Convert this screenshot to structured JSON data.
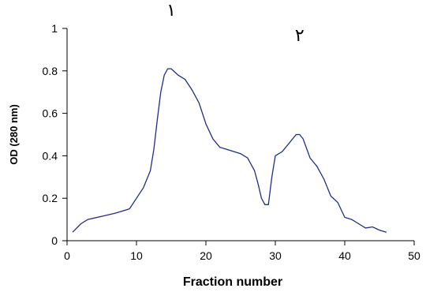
{
  "chart_data": {
    "type": "line",
    "title": "",
    "xlabel": "Fraction number",
    "ylabel": "OD (280 nm)",
    "xlim": [
      0,
      50
    ],
    "ylim": [
      0,
      1
    ],
    "x_ticks": [
      "0",
      "10",
      "20",
      "30",
      "40",
      "50"
    ],
    "y_ticks": [
      "0",
      "0.2",
      "0.4",
      "0.6",
      "0.8",
      "1"
    ],
    "grid": false,
    "line_color": "#1f2d8a",
    "annotations": [
      {
        "text": "١",
        "x": 15,
        "y": 1.06
      },
      {
        "text": "٢",
        "x": 33.5,
        "y": 0.94
      }
    ],
    "series": [
      {
        "x": [
          0.8,
          2,
          3,
          5,
          7,
          8.5,
          9,
          10,
          11,
          12,
          12.5,
          13,
          13.5,
          14,
          14.5,
          15,
          16,
          17,
          18,
          19,
          20,
          21,
          22,
          23,
          24,
          25,
          26,
          27,
          27.5,
          28,
          28.5,
          29,
          29.5,
          30,
          31,
          32,
          33,
          33.5,
          34,
          35,
          36,
          37,
          38,
          39,
          40,
          41,
          42,
          43,
          44,
          45,
          46
        ],
        "y": [
          0.04,
          0.08,
          0.1,
          0.115,
          0.13,
          0.145,
          0.15,
          0.2,
          0.25,
          0.33,
          0.43,
          0.57,
          0.7,
          0.78,
          0.81,
          0.81,
          0.78,
          0.76,
          0.71,
          0.65,
          0.55,
          0.48,
          0.44,
          0.43,
          0.42,
          0.41,
          0.39,
          0.33,
          0.27,
          0.2,
          0.17,
          0.17,
          0.3,
          0.4,
          0.42,
          0.46,
          0.5,
          0.5,
          0.48,
          0.39,
          0.35,
          0.29,
          0.21,
          0.18,
          0.11,
          0.1,
          0.08,
          0.06,
          0.065,
          0.05,
          0.04
        ]
      }
    ]
  }
}
